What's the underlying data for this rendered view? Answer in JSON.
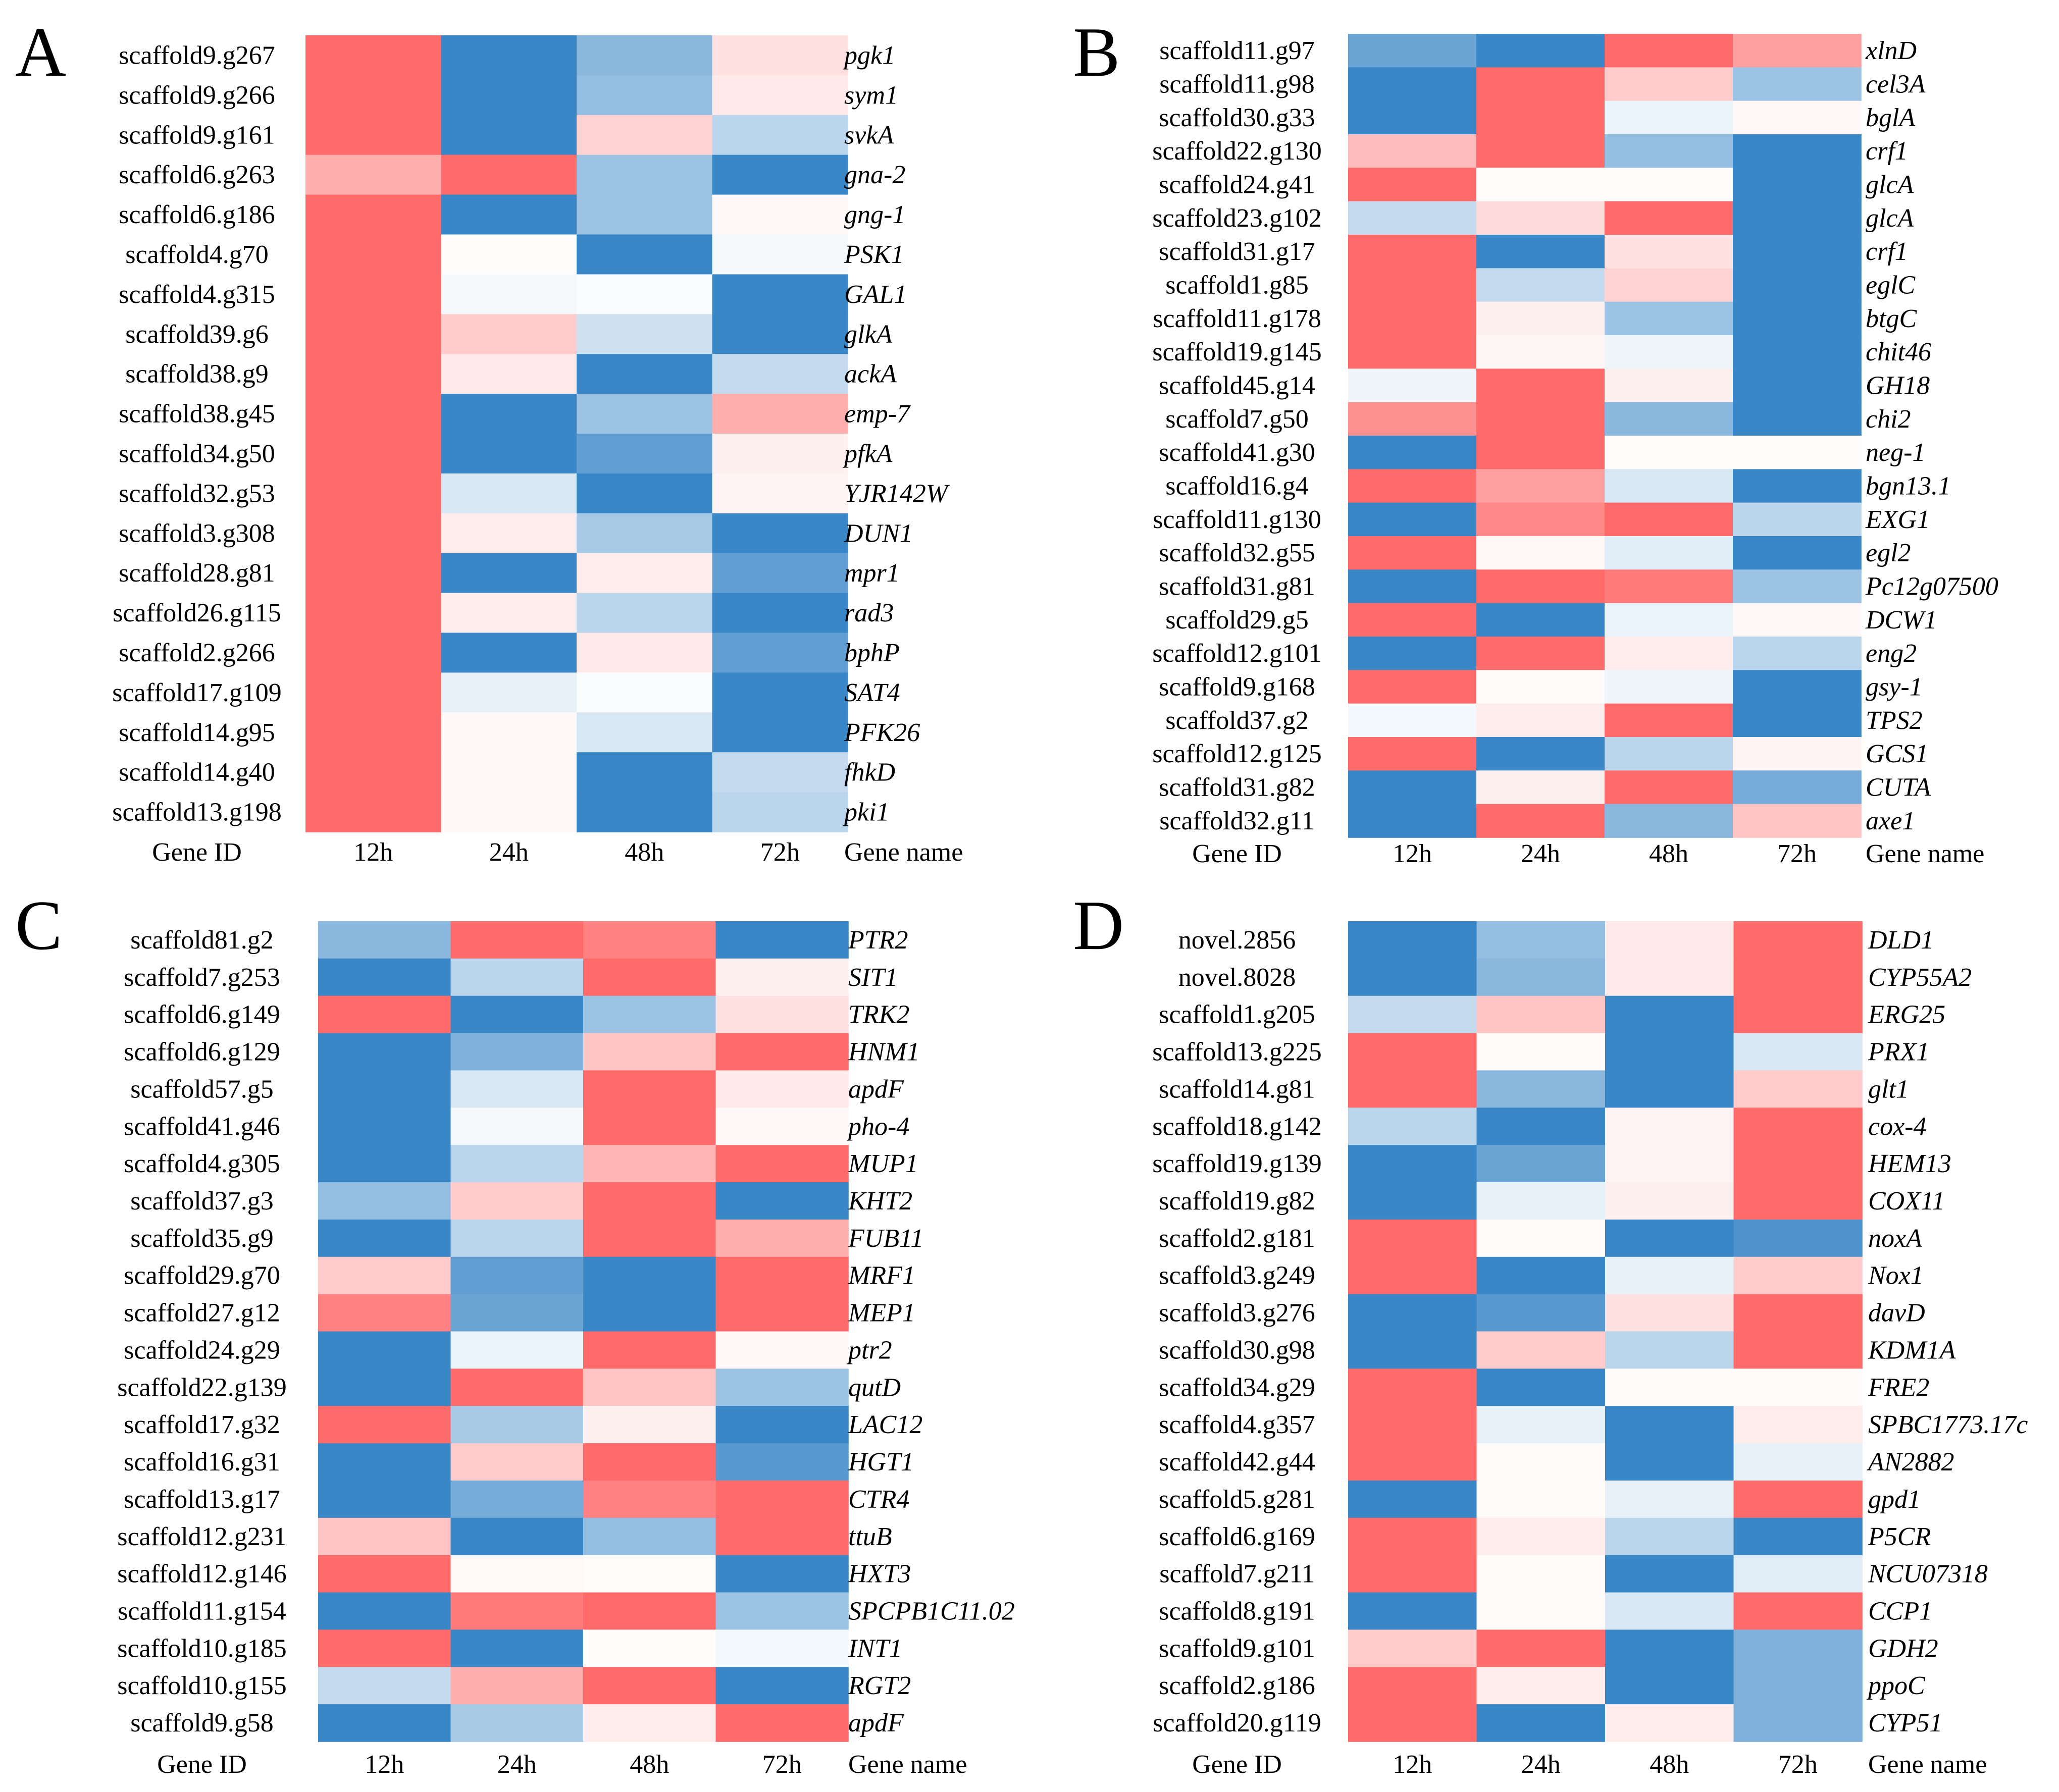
{
  "figure": {
    "colors": {
      "high": "#ff6b6b",
      "mid": "#ffffff",
      "low": "#3a87c8"
    }
  },
  "chart_data": [
    {
      "type": "heatmap",
      "panel": "A",
      "columns": [
        "12h",
        "24h",
        "48h",
        "72h"
      ],
      "row_header": "Gene ID",
      "name_header": "Gene name",
      "value_range": [
        -1,
        1
      ],
      "rows": [
        {
          "id": "scaffold9.g267",
          "name": "pgk1",
          "values": [
            1,
            -1,
            -0.6,
            0.2
          ]
        },
        {
          "id": "scaffold9.g266",
          "name": "sym1",
          "values": [
            1,
            -1,
            -0.55,
            0.15
          ]
        },
        {
          "id": "scaffold9.g161",
          "name": "svkA",
          "values": [
            1,
            -1,
            0.3,
            -0.35
          ]
        },
        {
          "id": "scaffold6.g263",
          "name": "gna-2",
          "values": [
            0.55,
            1,
            -0.5,
            -1
          ]
        },
        {
          "id": "scaffold6.g186",
          "name": "gng-1",
          "values": [
            1,
            -1,
            -0.5,
            0.05
          ]
        },
        {
          "id": "scaffold4.g70",
          "name": "PSK1",
          "values": [
            1,
            0.02,
            -1,
            -0.05
          ]
        },
        {
          "id": "scaffold4.g315",
          "name": "GAL1",
          "values": [
            1,
            -0.05,
            -0.03,
            -1
          ]
        },
        {
          "id": "scaffold39.g6",
          "name": "glkA",
          "values": [
            1,
            0.35,
            -0.25,
            -1
          ]
        },
        {
          "id": "scaffold38.g9",
          "name": "ackA",
          "values": [
            1,
            0.15,
            -1,
            -0.3
          ]
        },
        {
          "id": "scaffold38.g45",
          "name": "emp-7",
          "values": [
            1,
            -1,
            -0.5,
            0.55
          ]
        },
        {
          "id": "scaffold34.g50",
          "name": "pfkA",
          "values": [
            1,
            -1,
            -0.8,
            0.1
          ]
        },
        {
          "id": "scaffold32.g53",
          "name": "YJR142W",
          "values": [
            1,
            -0.2,
            -1,
            0.08
          ]
        },
        {
          "id": "scaffold3.g308",
          "name": "DUN1",
          "values": [
            1,
            0.12,
            -0.45,
            -1
          ]
        },
        {
          "id": "scaffold28.g81",
          "name": "mpr1",
          "values": [
            1,
            -1,
            0.12,
            -0.8
          ]
        },
        {
          "id": "scaffold26.g115",
          "name": "rad3",
          "values": [
            1,
            0.12,
            -0.35,
            -1
          ]
        },
        {
          "id": "scaffold2.g266",
          "name": "bphP",
          "values": [
            1,
            -1,
            0.15,
            -0.8
          ]
        },
        {
          "id": "scaffold17.g109",
          "name": "SAT4",
          "values": [
            1,
            -0.12,
            -0.03,
            -1
          ]
        },
        {
          "id": "scaffold14.g95",
          "name": "PFK26",
          "values": [
            1,
            0.05,
            -0.2,
            -1
          ]
        },
        {
          "id": "scaffold14.g40",
          "name": "fhkD",
          "values": [
            1,
            0.05,
            -1,
            -0.3
          ]
        },
        {
          "id": "scaffold13.g198",
          "name": "pki1",
          "values": [
            1,
            0.05,
            -1,
            -0.35
          ]
        }
      ]
    },
    {
      "type": "heatmap",
      "panel": "B",
      "columns": [
        "12h",
        "24h",
        "48h",
        "72h"
      ],
      "row_header": "Gene ID",
      "name_header": "Gene name",
      "value_range": [
        -1,
        1
      ],
      "rows": [
        {
          "id": "scaffold11.g97",
          "name": "xlnD",
          "values": [
            -0.75,
            -1,
            1,
            0.65
          ]
        },
        {
          "id": "scaffold11.g98",
          "name": "cel3A",
          "values": [
            -1,
            1,
            0.35,
            -0.5
          ]
        },
        {
          "id": "scaffold30.g33",
          "name": "bglA",
          "values": [
            -1,
            1,
            -0.1,
            0.05
          ]
        },
        {
          "id": "scaffold22.g130",
          "name": "crf1",
          "values": [
            0.45,
            1,
            -0.55,
            -1
          ]
        },
        {
          "id": "scaffold24.g41",
          "name": "glcA",
          "values": [
            1,
            0.02,
            0.02,
            -1
          ]
        },
        {
          "id": "scaffold23.g102",
          "name": "glcA",
          "values": [
            -0.3,
            0.25,
            1,
            -1
          ]
        },
        {
          "id": "scaffold31.g17",
          "name": "crf1",
          "values": [
            1,
            -1,
            0.2,
            -1
          ]
        },
        {
          "id": "scaffold1.g85",
          "name": "eglC",
          "values": [
            1,
            -0.3,
            0.3,
            -1
          ]
        },
        {
          "id": "scaffold11.g178",
          "name": "btgC",
          "values": [
            1,
            0.1,
            -0.5,
            -1
          ]
        },
        {
          "id": "scaffold19.g145",
          "name": "chit46",
          "values": [
            1,
            0.06,
            -0.08,
            -1
          ]
        },
        {
          "id": "scaffold45.g14",
          "name": "GH18",
          "values": [
            -0.08,
            1,
            0.1,
            -1
          ]
        },
        {
          "id": "scaffold7.g50",
          "name": "chi2",
          "values": [
            0.75,
            1,
            -0.6,
            -1
          ]
        },
        {
          "id": "scaffold41.g30",
          "name": "neg-1",
          "values": [
            -1,
            1,
            0.02,
            0.02
          ]
        },
        {
          "id": "scaffold16.g4",
          "name": "bgn13.1",
          "values": [
            1,
            0.65,
            -0.2,
            -1
          ]
        },
        {
          "id": "scaffold11.g130",
          "name": "EXG1",
          "values": [
            -1,
            0.8,
            1,
            -0.35
          ]
        },
        {
          "id": "scaffold32.g55",
          "name": "egl2",
          "values": [
            1,
            0.05,
            -0.15,
            -1
          ]
        },
        {
          "id": "scaffold31.g81",
          "name": "Pc12g07500",
          "values": [
            -1,
            1,
            0.9,
            -0.5
          ]
        },
        {
          "id": "scaffold29.g5",
          "name": "DCW1",
          "values": [
            1,
            -1,
            -0.1,
            0.05
          ]
        },
        {
          "id": "scaffold12.g101",
          "name": "eng2",
          "values": [
            -1,
            1,
            0.12,
            -0.35
          ]
        },
        {
          "id": "scaffold9.g168",
          "name": "gsy-1",
          "values": [
            1,
            0.03,
            -0.08,
            -1
          ]
        },
        {
          "id": "scaffold37.g2",
          "name": "TPS2",
          "values": [
            -0.06,
            0.12,
            1,
            -1
          ]
        },
        {
          "id": "scaffold12.g125",
          "name": "GCS1",
          "values": [
            1,
            -1,
            -0.35,
            0.08
          ]
        },
        {
          "id": "scaffold31.g82",
          "name": "CUTA",
          "values": [
            -1,
            0.1,
            1,
            -0.7
          ]
        },
        {
          "id": "scaffold32.g11",
          "name": "axe1",
          "values": [
            -1,
            1,
            -0.6,
            0.4
          ]
        }
      ]
    },
    {
      "type": "heatmap",
      "panel": "C",
      "columns": [
        "12h",
        "24h",
        "48h",
        "72h"
      ],
      "row_header": "Gene ID",
      "name_header": "Gene name",
      "value_range": [
        -1,
        1
      ],
      "rows": [
        {
          "id": "scaffold81.g2",
          "name": "PTR2",
          "values": [
            -0.6,
            1,
            0.85,
            -1
          ]
        },
        {
          "id": "scaffold7.g253",
          "name": "SIT1",
          "values": [
            -1,
            -0.35,
            1,
            0.1
          ]
        },
        {
          "id": "scaffold6.g149",
          "name": "TRK2",
          "values": [
            1,
            -1,
            -0.5,
            0.2
          ]
        },
        {
          "id": "scaffold6.g129",
          "name": "HNM1",
          "values": [
            -1,
            -0.65,
            0.4,
            1
          ]
        },
        {
          "id": "scaffold57.g5",
          "name": "apdF",
          "values": [
            -1,
            -0.2,
            1,
            0.15
          ]
        },
        {
          "id": "scaffold41.g46",
          "name": "pho-4",
          "values": [
            -1,
            -0.05,
            1,
            0.05
          ]
        },
        {
          "id": "scaffold4.g305",
          "name": "MUP1",
          "values": [
            -1,
            -0.35,
            0.5,
            1
          ]
        },
        {
          "id": "scaffold37.g3",
          "name": "KHT2",
          "values": [
            -0.55,
            0.35,
            1,
            -1
          ]
        },
        {
          "id": "scaffold35.g9",
          "name": "FUB11",
          "values": [
            -1,
            -0.35,
            1,
            0.55
          ]
        },
        {
          "id": "scaffold29.g70",
          "name": "MRF1",
          "values": [
            0.35,
            -0.8,
            -1,
            1
          ]
        },
        {
          "id": "scaffold27.g12",
          "name": "MEP1",
          "values": [
            0.85,
            -0.75,
            -1,
            1
          ]
        },
        {
          "id": "scaffold24.g29",
          "name": "ptr2",
          "values": [
            -1,
            -0.1,
            1,
            0.05
          ]
        },
        {
          "id": "scaffold22.g139",
          "name": "qutD",
          "values": [
            -1,
            1,
            0.4,
            -0.5
          ]
        },
        {
          "id": "scaffold17.g32",
          "name": "LAC12",
          "values": [
            1,
            -0.45,
            0.1,
            -1
          ]
        },
        {
          "id": "scaffold16.g31",
          "name": "HGT1",
          "values": [
            -1,
            0.35,
            1,
            -0.85
          ]
        },
        {
          "id": "scaffold13.g17",
          "name": "CTR4",
          "values": [
            -1,
            -0.7,
            0.85,
            1
          ]
        },
        {
          "id": "scaffold12.g231",
          "name": "ttuB",
          "values": [
            0.4,
            -1,
            -0.55,
            1
          ]
        },
        {
          "id": "scaffold12.g146",
          "name": "HXT3",
          "values": [
            1,
            0.04,
            0.02,
            -1
          ]
        },
        {
          "id": "scaffold11.g154",
          "name": "SPCPB1C11.02",
          "values": [
            -1,
            0.9,
            1,
            -0.5
          ]
        },
        {
          "id": "scaffold10.g185",
          "name": "INT1",
          "values": [
            1,
            -1,
            0.02,
            -0.06
          ]
        },
        {
          "id": "scaffold10.g155",
          "name": "RGT2",
          "values": [
            -0.3,
            0.55,
            1,
            -1
          ]
        },
        {
          "id": "scaffold9.g58",
          "name": "apdF",
          "values": [
            -1,
            -0.45,
            0.12,
            1
          ]
        }
      ]
    },
    {
      "type": "heatmap",
      "panel": "D",
      "columns": [
        "12h",
        "24h",
        "48h",
        "72h"
      ],
      "row_header": "Gene ID",
      "name_header": "Gene name",
      "value_range": [
        -1,
        1
      ],
      "rows": [
        {
          "id": "novel.2856",
          "name": "DLD1",
          "values": [
            -1,
            -0.55,
            0.15,
            1
          ]
        },
        {
          "id": "novel.8028",
          "name": "CYP55A2",
          "values": [
            -1,
            -0.6,
            0.15,
            1
          ]
        },
        {
          "id": "scaffold1.g205",
          "name": "ERG25",
          "values": [
            -0.3,
            0.4,
            -1,
            1
          ]
        },
        {
          "id": "scaffold13.g225",
          "name": "PRX1",
          "values": [
            1,
            0.03,
            -1,
            -0.2
          ]
        },
        {
          "id": "scaffold14.g81",
          "name": "glt1",
          "values": [
            1,
            -0.6,
            -1,
            0.35
          ]
        },
        {
          "id": "scaffold18.g142",
          "name": "cox-4",
          "values": [
            -0.35,
            -1,
            0.08,
            1
          ]
        },
        {
          "id": "scaffold19.g139",
          "name": "HEM13",
          "values": [
            -1,
            -0.75,
            0.08,
            1
          ]
        },
        {
          "id": "scaffold19.g82",
          "name": "COX11",
          "values": [
            -1,
            -0.12,
            0.1,
            1
          ]
        },
        {
          "id": "scaffold2.g181",
          "name": "noxA",
          "values": [
            1,
            0.03,
            -1,
            -0.9
          ]
        },
        {
          "id": "scaffold3.g249",
          "name": "Nox1",
          "values": [
            1,
            -1,
            -0.12,
            0.35
          ]
        },
        {
          "id": "scaffold3.g276",
          "name": "davD",
          "values": [
            -1,
            -0.85,
            0.2,
            1
          ]
        },
        {
          "id": "scaffold30.g98",
          "name": "KDM1A",
          "values": [
            -1,
            0.35,
            -0.35,
            1
          ]
        },
        {
          "id": "scaffold34.g29",
          "name": "FRE2",
          "values": [
            1,
            -1,
            0.03,
            0.03
          ]
        },
        {
          "id": "scaffold4.g357",
          "name": "SPBC1773.17c",
          "values": [
            1,
            -0.12,
            -1,
            0.12
          ]
        },
        {
          "id": "scaffold42.g44",
          "name": "AN2882",
          "values": [
            1,
            0.03,
            -1,
            -0.12
          ]
        },
        {
          "id": "scaffold5.g281",
          "name": "gpd1",
          "values": [
            -1,
            0.03,
            -0.12,
            1
          ]
        },
        {
          "id": "scaffold6.g169",
          "name": "P5CR",
          "values": [
            1,
            0.12,
            -0.35,
            -1
          ]
        },
        {
          "id": "scaffold7.g211",
          "name": "NCU07318",
          "values": [
            1,
            0.03,
            -1,
            -0.15
          ]
        },
        {
          "id": "scaffold8.g191",
          "name": "CCP1",
          "values": [
            -1,
            0.03,
            -0.2,
            1
          ]
        },
        {
          "id": "scaffold9.g101",
          "name": "GDH2",
          "values": [
            0.35,
            1,
            -1,
            -0.65
          ]
        },
        {
          "id": "scaffold2.g186",
          "name": "ppoC",
          "values": [
            1,
            0.12,
            -1,
            -0.65
          ]
        },
        {
          "id": "scaffold20.g119",
          "name": "CYP51",
          "values": [
            1,
            -1,
            0.12,
            -0.65
          ]
        }
      ]
    }
  ]
}
